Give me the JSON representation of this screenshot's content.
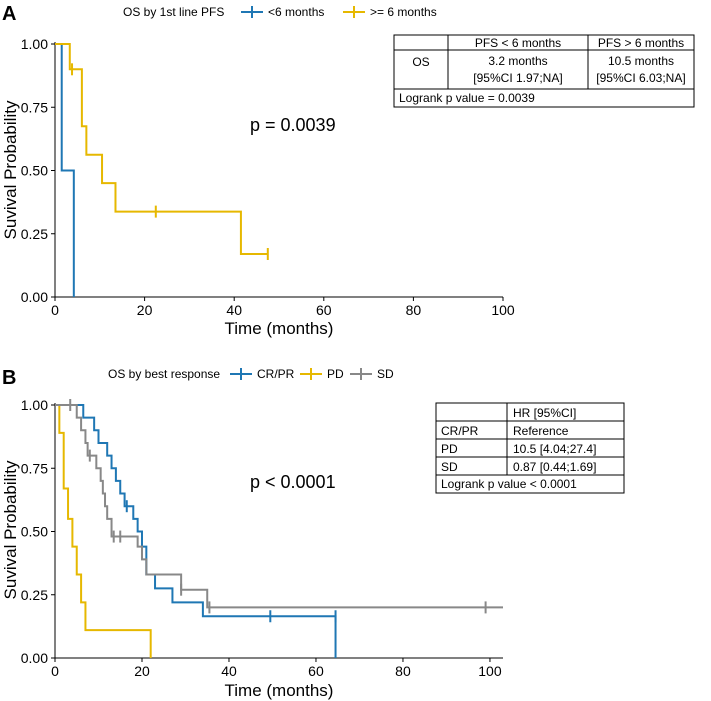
{
  "chart_data": [
    {
      "panel": "A",
      "type": "line",
      "subtype": "kaplan-meier",
      "legend_title": "OS by 1st line PFS",
      "xlabel": "Time (months)",
      "ylabel": "Suvival Probability",
      "xlim": [
        0,
        100
      ],
      "ylim": [
        0,
        1
      ],
      "x_ticks": [
        0,
        20,
        40,
        60,
        80,
        100
      ],
      "y_ticks": [
        0,
        0.25,
        0.5,
        0.75,
        1
      ],
      "y_tick_labels": [
        "0.00",
        "0.25",
        "0.50",
        "0.75",
        "1.00"
      ],
      "pvalue_text": "p = 0.0039",
      "series": [
        {
          "name": "<6 months",
          "color": "#1f77b4",
          "steps": [
            [
              0,
              1.0
            ],
            [
              1.5,
              0.5
            ],
            [
              4.2,
              0.0
            ]
          ],
          "censor": []
        },
        {
          "name": ">= 6 months",
          "color": "#e6b800",
          "steps": [
            [
              0,
              1.0
            ],
            [
              3.3,
              0.9
            ],
            [
              6.0,
              0.675
            ],
            [
              7.0,
              0.5625
            ],
            [
              10.5,
              0.45
            ],
            [
              13.5,
              0.3375
            ],
            [
              41.5,
              0.17
            ],
            [
              47.5,
              0.17
            ]
          ],
          "censor": [
            [
              3.8,
              0.9
            ],
            [
              22.5,
              0.3375
            ],
            [
              47.5,
              0.17
            ]
          ]
        }
      ],
      "table": {
        "header": [
          "",
          "PFS < 6 months",
          "PFS > 6 months"
        ],
        "row_label": "OS",
        "cells": [
          [
            "3.2 months",
            "[95%CI 1.97;NA]"
          ],
          [
            "10.5 months",
            "[95%CI 6.03;NA]"
          ]
        ],
        "footer": "Logrank p value  = 0.0039"
      }
    },
    {
      "panel": "B",
      "type": "line",
      "subtype": "kaplan-meier",
      "legend_title": "OS by best response",
      "xlabel": "Time (months)",
      "ylabel": "Suvival Probability",
      "xlim": [
        0,
        103
      ],
      "ylim": [
        0,
        1
      ],
      "x_ticks": [
        0,
        20,
        40,
        60,
        80,
        100
      ],
      "y_ticks": [
        0,
        0.25,
        0.5,
        0.75,
        1
      ],
      "y_tick_labels": [
        "0.00",
        "0.25",
        "0.50",
        "0.75",
        "1.00"
      ],
      "pvalue_text": "p < 0.0001",
      "series": [
        {
          "name": "CR/PR",
          "color": "#1f77b4",
          "steps": [
            [
              0,
              1.0
            ],
            [
              6,
              1.0
            ],
            [
              6.5,
              0.95
            ],
            [
              9,
              0.9
            ],
            [
              10,
              0.85
            ],
            [
              12,
              0.8
            ],
            [
              13,
              0.75
            ],
            [
              14,
              0.7
            ],
            [
              15,
              0.65
            ],
            [
              16,
              0.6
            ],
            [
              18,
              0.55
            ],
            [
              19,
              0.5
            ],
            [
              20,
              0.44
            ],
            [
              21,
              0.33
            ],
            [
              23,
              0.275
            ],
            [
              27,
              0.22
            ],
            [
              34,
              0.165
            ],
            [
              64.5,
              0.0
            ]
          ],
          "censor": [
            [
              16.5,
              0.6
            ],
            [
              49.5,
              0.165
            ],
            [
              64.5,
              0.165
            ]
          ]
        },
        {
          "name": "PD",
          "color": "#e6b800",
          "steps": [
            [
              0,
              1.0
            ],
            [
              1.0,
              0.89
            ],
            [
              2.0,
              0.67
            ],
            [
              3.0,
              0.55
            ],
            [
              4.0,
              0.44
            ],
            [
              5.0,
              0.33
            ],
            [
              6.0,
              0.22
            ],
            [
              7.0,
              0.11
            ],
            [
              22,
              0.0
            ]
          ],
          "censor": []
        },
        {
          "name": "SD",
          "color": "#888888",
          "steps": [
            [
              0,
              1.0
            ],
            [
              3,
              1.0
            ],
            [
              5,
              0.95
            ],
            [
              6,
              0.9
            ],
            [
              7,
              0.85
            ],
            [
              7.5,
              0.8
            ],
            [
              9.5,
              0.75
            ],
            [
              10.5,
              0.7
            ],
            [
              11,
              0.65
            ],
            [
              11.5,
              0.6
            ],
            [
              12,
              0.55
            ],
            [
              13,
              0.48
            ],
            [
              19,
              0.44
            ],
            [
              20,
              0.39
            ],
            [
              21,
              0.33
            ],
            [
              29,
              0.27
            ],
            [
              35,
              0.2
            ],
            [
              103,
              0.2
            ]
          ],
          "censor": [
            [
              3.5,
              1.0
            ],
            [
              8.0,
              0.8
            ],
            [
              13.5,
              0.48
            ],
            [
              15,
              0.48
            ],
            [
              29,
              0.27
            ],
            [
              35.5,
              0.2
            ],
            [
              99,
              0.2
            ]
          ]
        }
      ],
      "table": {
        "header": [
          "",
          "HR [95%CI]"
        ],
        "rows": [
          [
            "CR/PR",
            "Reference"
          ],
          [
            "PD",
            "10.5 [4.04;27.4]"
          ],
          [
            "SD",
            "0.87 [0.44;1.69]"
          ]
        ],
        "footer": "Logrank p value < 0.0001"
      }
    }
  ]
}
